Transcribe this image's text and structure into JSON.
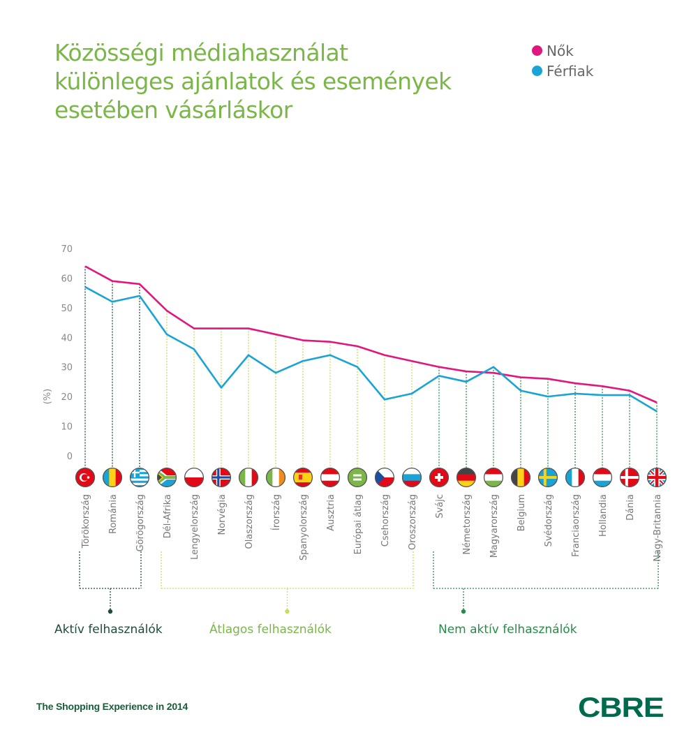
{
  "title_lines": [
    "Közösségi médiahasználat",
    "különleges ajánlatok és események",
    "esetében vásárláskor"
  ],
  "legend": [
    {
      "label": "Nők",
      "color": "#e0177e"
    },
    {
      "label": "Férfiak",
      "color": "#1aa3d5"
    }
  ],
  "footer": {
    "text": "The Shopping Experience in 2014",
    "logo": "CBRE"
  },
  "chart_data": {
    "type": "line",
    "title": "Közösségi médiahasználat különleges ajánlatok és események esetében vásárláskor",
    "xlabel": "",
    "ylabel": "(%)",
    "ylim": [
      0,
      70
    ],
    "yticks": [
      0,
      10,
      20,
      30,
      40,
      50,
      60,
      70
    ],
    "grid": false,
    "legend_position": "top-right",
    "categories": [
      "Törökország",
      "Románia",
      "Görögország",
      "Dél-Afrika",
      "Lengyelország",
      "Norvégia",
      "Olaszország",
      "Írország",
      "Spanyolország",
      "Ausztria",
      "Európai átlag",
      "Csehország",
      "Oroszország",
      "Svájc",
      "Németország",
      "Magyarország",
      "Belgium",
      "Svédország",
      "Franciaország",
      "Hollandia",
      "Dánia",
      "Nagy-Britannia"
    ],
    "flags": [
      "turkey",
      "romania",
      "greece",
      "south-africa",
      "poland",
      "norway",
      "italy",
      "ireland",
      "spain",
      "austria",
      "eu-average",
      "czech",
      "russia",
      "switzerland",
      "germany",
      "hungary",
      "belgium",
      "sweden",
      "france",
      "netherlands",
      "denmark",
      "uk"
    ],
    "highlight_category": "Európai átlag",
    "series": [
      {
        "name": "Nők",
        "color": "#e0177e",
        "values": [
          64,
          59,
          58,
          49,
          43,
          43,
          43,
          41,
          39,
          38.5,
          37,
          34,
          32,
          30,
          28.5,
          28,
          26.5,
          26,
          24.5,
          23.5,
          22,
          18
        ]
      },
      {
        "name": "Férfiak",
        "color": "#1aa3d5",
        "values": [
          57,
          52,
          54,
          41,
          36,
          23,
          34,
          28,
          32,
          34,
          30,
          19,
          21,
          27,
          25,
          30,
          22,
          20,
          21,
          20.5,
          20.5,
          15
        ]
      }
    ],
    "groups": [
      {
        "label": "Aktív felhasználók",
        "from": 0,
        "to": 2,
        "color": "#1e4d3a"
      },
      {
        "label": "Átlagos felhasználók",
        "from": 3,
        "to": 12,
        "color": "#7ab648",
        "line_color": "#c9dc5a"
      },
      {
        "label": "Nem aktív felhasználók",
        "from": 13,
        "to": 21,
        "color": "#2a8a4a"
      }
    ]
  }
}
